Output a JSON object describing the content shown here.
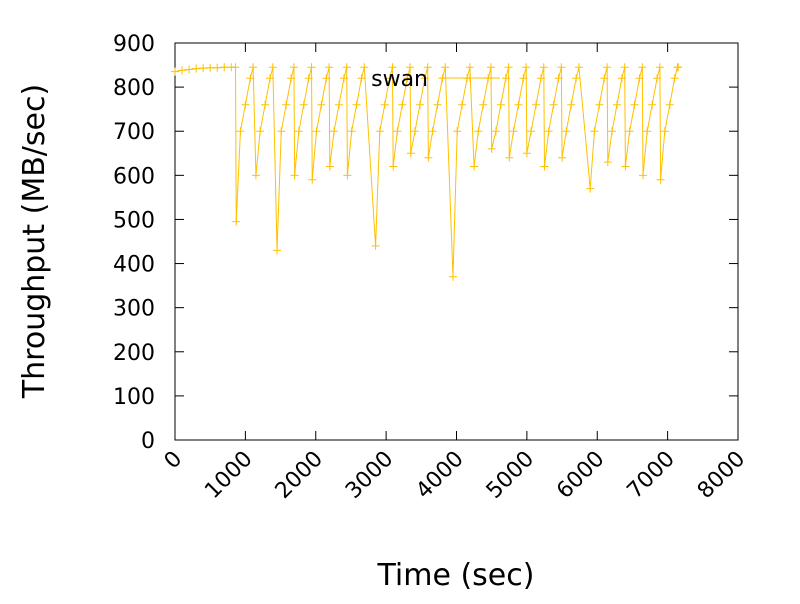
{
  "chart_data": {
    "type": "line",
    "x_label": "Time (sec)",
    "y_label": "Throughput (MB/sec)",
    "xlim": [
      0,
      8000
    ],
    "xticks": [
      0,
      1000,
      2000,
      3000,
      4000,
      5000,
      6000,
      7000,
      8000
    ],
    "ylim": [
      0,
      900
    ],
    "yticks": [
      0,
      100,
      200,
      300,
      400,
      500,
      600,
      700,
      800,
      900
    ],
    "grid": false,
    "legend": "top",
    "series": [
      {
        "name": "swan",
        "color": "#ffc000",
        "x": [
          0,
          100,
          200,
          300,
          400,
          500,
          600,
          700,
          800,
          860,
          870,
          930,
          1000,
          1070,
          1110,
          1150,
          1210,
          1280,
          1350,
          1390,
          1450,
          1510,
          1580,
          1650,
          1690,
          1700,
          1760,
          1830,
          1900,
          1940,
          1950,
          2010,
          2080,
          2150,
          2190,
          2200,
          2260,
          2330,
          2400,
          2440,
          2450,
          2510,
          2580,
          2650,
          2690,
          2850,
          2910,
          2980,
          3050,
          3090,
          3100,
          3160,
          3230,
          3300,
          3340,
          3350,
          3410,
          3480,
          3550,
          3590,
          3600,
          3660,
          3730,
          3800,
          3840,
          3950,
          4010,
          4080,
          4150,
          4190,
          4250,
          4310,
          4380,
          4450,
          4490,
          4500,
          4560,
          4630,
          4700,
          4740,
          4750,
          4810,
          4880,
          4950,
          4990,
          5000,
          5060,
          5130,
          5200,
          5240,
          5250,
          5310,
          5380,
          5450,
          5490,
          5500,
          5560,
          5630,
          5700,
          5740,
          5900,
          5960,
          6030,
          6100,
          6140,
          6150,
          6210,
          6280,
          6350,
          6390,
          6400,
          6460,
          6530,
          6600,
          6640,
          6650,
          6710,
          6780,
          6850,
          6890,
          6900,
          6960,
          7030,
          7100,
          7140,
          7150
        ],
        "values": [
          835,
          838,
          840,
          842,
          843,
          844,
          844,
          845,
          845,
          845,
          495,
          700,
          760,
          820,
          845,
          600,
          700,
          760,
          820,
          845,
          430,
          700,
          760,
          820,
          845,
          600,
          700,
          760,
          820,
          845,
          590,
          700,
          760,
          820,
          845,
          620,
          700,
          760,
          820,
          845,
          600,
          700,
          760,
          820,
          845,
          440,
          700,
          760,
          820,
          845,
          620,
          700,
          760,
          820,
          845,
          650,
          700,
          760,
          820,
          845,
          640,
          700,
          760,
          820,
          845,
          370,
          700,
          760,
          820,
          845,
          620,
          700,
          760,
          820,
          845,
          660,
          700,
          760,
          820,
          845,
          640,
          700,
          760,
          820,
          845,
          650,
          700,
          760,
          820,
          845,
          620,
          700,
          760,
          820,
          845,
          640,
          700,
          760,
          820,
          845,
          570,
          700,
          760,
          820,
          845,
          630,
          700,
          760,
          820,
          845,
          620,
          700,
          760,
          820,
          845,
          600,
          700,
          760,
          820,
          845,
          590,
          700,
          760,
          820,
          845,
          845
        ]
      }
    ]
  }
}
